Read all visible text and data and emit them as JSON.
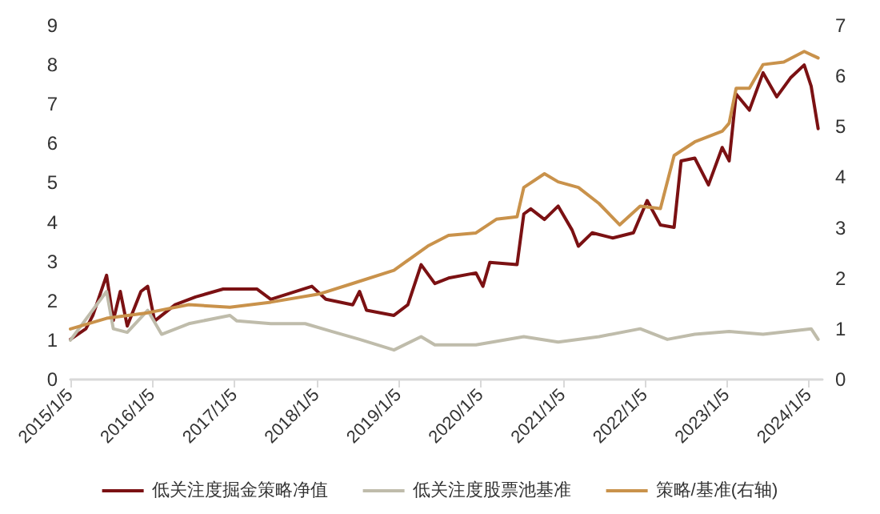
{
  "chart_data": {
    "type": "line",
    "xlim": [
      "2015-01-05",
      "2024-03-05"
    ],
    "xticks": [
      {
        "value": "2015-01-05",
        "label": "2015/1/5"
      },
      {
        "value": "2016-01-05",
        "label": "2016/1/5"
      },
      {
        "value": "2017-01-05",
        "label": "2017/1/5"
      },
      {
        "value": "2018-01-05",
        "label": "2018/1/5"
      },
      {
        "value": "2019-01-05",
        "label": "2019/1/5"
      },
      {
        "value": "2020-01-05",
        "label": "2020/1/5"
      },
      {
        "value": "2021-01-05",
        "label": "2021/1/5"
      },
      {
        "value": "2022-01-05",
        "label": "2022/1/5"
      },
      {
        "value": "2023-01-05",
        "label": "2023/1/5"
      },
      {
        "value": "2024-01-05",
        "label": "2024/1/5"
      }
    ],
    "ylim": [
      0,
      9
    ],
    "yticks": [
      0,
      1,
      2,
      3,
      4,
      5,
      6,
      7,
      8,
      9
    ],
    "y2lim": [
      0,
      7
    ],
    "y2ticks": [
      0,
      1,
      2,
      3,
      4,
      5,
      6,
      7
    ],
    "grid": false,
    "legend": "bottom",
    "marker": "none",
    "line_style": "solid",
    "series": [
      {
        "name": "低关注度掘金策略净值",
        "color": "#7b1113",
        "x": [
          "2015-01-05",
          "2015-03",
          "2015-04",
          "2015-06",
          "2015-07",
          "2015-08",
          "2015-09",
          "2015-11",
          "2015-12",
          "2016-01",
          "2016-04",
          "2016-07",
          "2016-11",
          "2017-04",
          "2017-06",
          "2017-12",
          "2018-02",
          "2018-06",
          "2018-07",
          "2018-08",
          "2018-12",
          "2019-02",
          "2019-04",
          "2019-06",
          "2019-08",
          "2019-12",
          "2020-01",
          "2020-02",
          "2020-06",
          "2020-07",
          "2020-08",
          "2020-10",
          "2020-12",
          "2021-02",
          "2021-03",
          "2021-05",
          "2021-08",
          "2021-11",
          "2022-01",
          "2022-03",
          "2022-05",
          "2022-06",
          "2022-08",
          "2022-10",
          "2022-12",
          "2023-01",
          "2023-02",
          "2023-04",
          "2023-06",
          "2023-08",
          "2023-10",
          "2023-12",
          "2024-01",
          "2024-02"
        ],
        "values": [
          1.02,
          1.29,
          1.63,
          2.65,
          1.5,
          2.24,
          1.36,
          2.24,
          2.37,
          1.49,
          1.9,
          2.1,
          2.3,
          2.3,
          2.04,
          2.37,
          2.04,
          1.9,
          2.24,
          1.76,
          1.63,
          1.9,
          2.92,
          2.44,
          2.58,
          2.71,
          2.37,
          2.98,
          2.92,
          4.21,
          4.34,
          4.07,
          4.41,
          3.8,
          3.39,
          3.73,
          3.6,
          3.73,
          4.55,
          3.93,
          3.87,
          5.56,
          5.63,
          4.95,
          5.9,
          5.56,
          7.26,
          6.85,
          7.8,
          7.19,
          7.67,
          8.0,
          7.46,
          6.38
        ]
      },
      {
        "name": "低关注度股票池基准",
        "color": "#bfbcab",
        "x": [
          "2015-01-05",
          "2015-06",
          "2015-07",
          "2015-09",
          "2015-12",
          "2016-02",
          "2016-06",
          "2016-12",
          "2017-01",
          "2017-06",
          "2017-11",
          "2018-03",
          "2018-07",
          "2018-12",
          "2019-04",
          "2019-06",
          "2019-12",
          "2020-07",
          "2020-12",
          "2021-06",
          "2021-12",
          "2022-04",
          "2022-08",
          "2023-01",
          "2023-06",
          "2024-01",
          "2024-02"
        ],
        "values": [
          1.0,
          2.24,
          1.29,
          1.2,
          1.76,
          1.15,
          1.42,
          1.63,
          1.49,
          1.42,
          1.42,
          1.22,
          1.02,
          0.75,
          1.09,
          0.88,
          0.88,
          1.09,
          0.95,
          1.09,
          1.29,
          1.02,
          1.15,
          1.22,
          1.15,
          1.29,
          1.02
        ]
      },
      {
        "name": "策略/基准(右轴)",
        "color": "#c9924b",
        "axis": "y2",
        "x": [
          "2015-01-05",
          "2015-06",
          "2015-12",
          "2016-06",
          "2016-12",
          "2017-06",
          "2018-01",
          "2018-06",
          "2018-12",
          "2019-05",
          "2019-08",
          "2019-12",
          "2020-03",
          "2020-06",
          "2020-07",
          "2020-10",
          "2020-12",
          "2021-03",
          "2021-06",
          "2021-09",
          "2021-12",
          "2022-03",
          "2022-05",
          "2022-08",
          "2022-12",
          "2023-01",
          "2023-02",
          "2023-04",
          "2023-06",
          "2023-09",
          "2023-12",
          "2024-02"
        ],
        "values": [
          1.0,
          1.21,
          1.32,
          1.48,
          1.43,
          1.53,
          1.69,
          1.9,
          2.16,
          2.64,
          2.85,
          2.9,
          3.17,
          3.22,
          3.8,
          4.07,
          3.91,
          3.8,
          3.48,
          3.06,
          3.43,
          3.38,
          4.43,
          4.7,
          4.91,
          5.07,
          5.76,
          5.76,
          6.23,
          6.28,
          6.49,
          6.36
        ]
      }
    ]
  }
}
